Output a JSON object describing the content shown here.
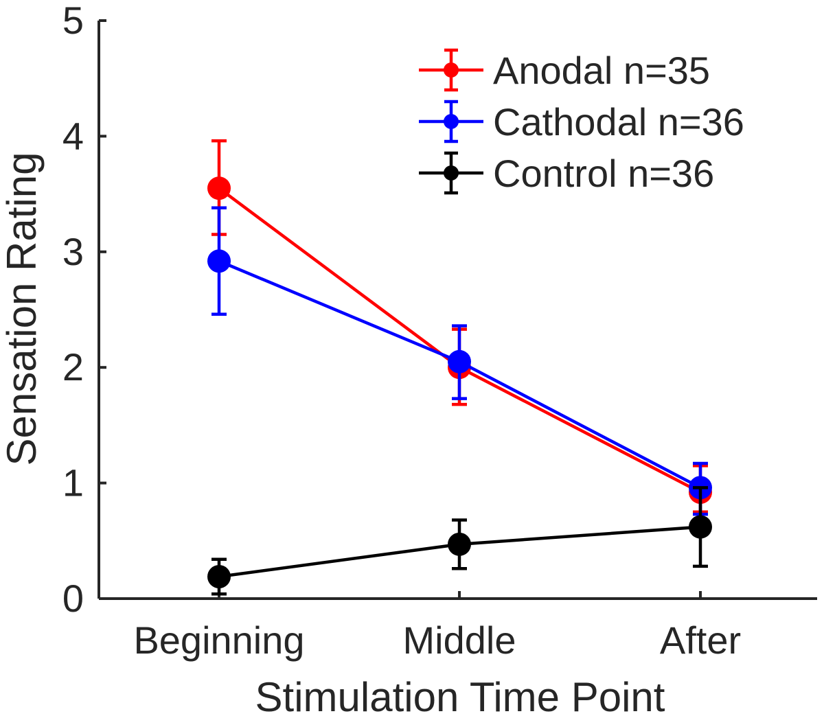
{
  "chart_data": {
    "type": "line",
    "title": "",
    "xlabel": "Stimulation Time Point",
    "ylabel": "Sensation Rating",
    "categories": [
      "Beginning",
      "Middle",
      "After"
    ],
    "ylim": [
      0,
      5
    ],
    "yticks": [
      "0",
      "1",
      "2",
      "3",
      "4",
      "5"
    ],
    "grid": false,
    "legend_position": "top-right",
    "series": [
      {
        "name": "Anodal n=35",
        "color": "#ff0000",
        "values": [
          3.55,
          2.0,
          0.92
        ],
        "err_low": [
          3.15,
          1.68,
          0.75
        ],
        "err_high": [
          3.96,
          2.33,
          1.15
        ]
      },
      {
        "name": "Cathodal n=36",
        "color": "#0000ff",
        "values": [
          2.92,
          2.05,
          0.96
        ],
        "err_low": [
          2.46,
          1.73,
          0.73
        ],
        "err_high": [
          3.38,
          2.36,
          1.17
        ]
      },
      {
        "name": "Control n=36",
        "color": "#000000",
        "values": [
          0.19,
          0.47,
          0.62
        ],
        "err_low": [
          0.04,
          0.26,
          0.28
        ],
        "err_high": [
          0.34,
          0.68,
          0.96
        ]
      }
    ]
  }
}
